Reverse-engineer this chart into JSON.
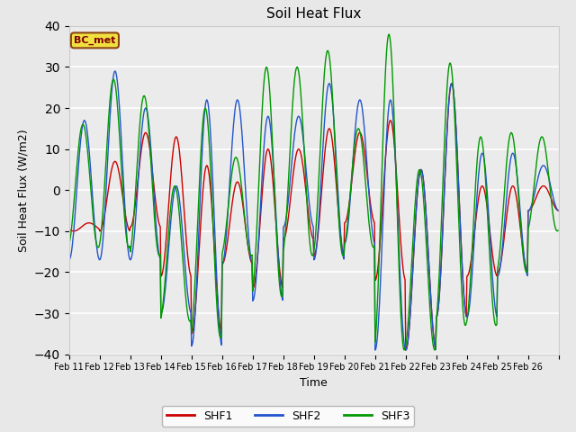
{
  "title": "Soil Heat Flux",
  "xlabel": "Time",
  "ylabel": "Soil Heat Flux (W/m2)",
  "ylim": [
    -40,
    40
  ],
  "yticks": [
    -40,
    -30,
    -20,
    -10,
    0,
    10,
    20,
    30,
    40
  ],
  "bg_color": "#e8e8e8",
  "plot_bg_color": "#ebebeb",
  "grid_color": "#ffffff",
  "legend_label": "BC_met",
  "series": [
    "SHF1",
    "SHF2",
    "SHF3"
  ],
  "colors": [
    "#cc0000",
    "#2255cc",
    "#009900"
  ],
  "xtick_labels": [
    "Feb 11",
    "Feb 12",
    "Feb 13",
    "Feb 14",
    "Feb 15",
    "Feb 16",
    "Feb 17",
    "Feb 18",
    "Feb 19",
    "Feb 20",
    "Feb 21",
    "Feb 22",
    "Feb 23",
    "Feb 24",
    "Feb 25",
    "Feb 26"
  ],
  "shf1_maxima": [
    -8,
    7,
    14,
    13,
    6,
    2,
    10,
    10,
    15,
    14,
    17,
    5,
    26,
    1,
    1,
    1
  ],
  "shf1_minima": [
    -10,
    -10,
    -9,
    -21,
    -35,
    -18,
    -24,
    -12,
    -16,
    -8,
    -22,
    -39,
    -31,
    -21,
    -20,
    -5
  ],
  "shf2_maxima": [
    17,
    29,
    20,
    1,
    22,
    22,
    18,
    18,
    26,
    22,
    22,
    5,
    26,
    9,
    9,
    6
  ],
  "shf2_minima": [
    -17,
    -17,
    -17,
    -30,
    -38,
    -18,
    -27,
    -9,
    -17,
    -13,
    -39,
    -39,
    -31,
    -31,
    -21,
    -5
  ],
  "shf3_maxima": [
    16,
    27,
    23,
    1,
    20,
    8,
    30,
    30,
    34,
    15,
    38,
    5,
    31,
    13,
    14,
    13
  ],
  "shf3_minima": [
    -14,
    -14,
    -16,
    -32,
    -36,
    -16,
    -26,
    -16,
    -16,
    -14,
    -39,
    -39,
    -33,
    -33,
    -20,
    -10
  ],
  "shf1_phase": [
    0.65,
    0.5,
    0.5,
    0.5,
    0.5,
    0.5,
    0.5,
    0.5,
    0.5,
    0.5,
    0.5,
    0.5,
    0.5,
    0.5,
    0.5,
    0.5
  ],
  "shf2_phase": [
    0.5,
    0.5,
    0.5,
    0.5,
    0.5,
    0.5,
    0.5,
    0.5,
    0.5,
    0.5,
    0.5,
    0.5,
    0.5,
    0.5,
    0.5,
    0.5
  ],
  "shf3_phase": [
    0.45,
    0.45,
    0.45,
    0.45,
    0.45,
    0.45,
    0.45,
    0.45,
    0.45,
    0.45,
    0.45,
    0.45,
    0.45,
    0.45,
    0.45,
    0.45
  ],
  "n_days": 16,
  "pts_per_day": 48
}
